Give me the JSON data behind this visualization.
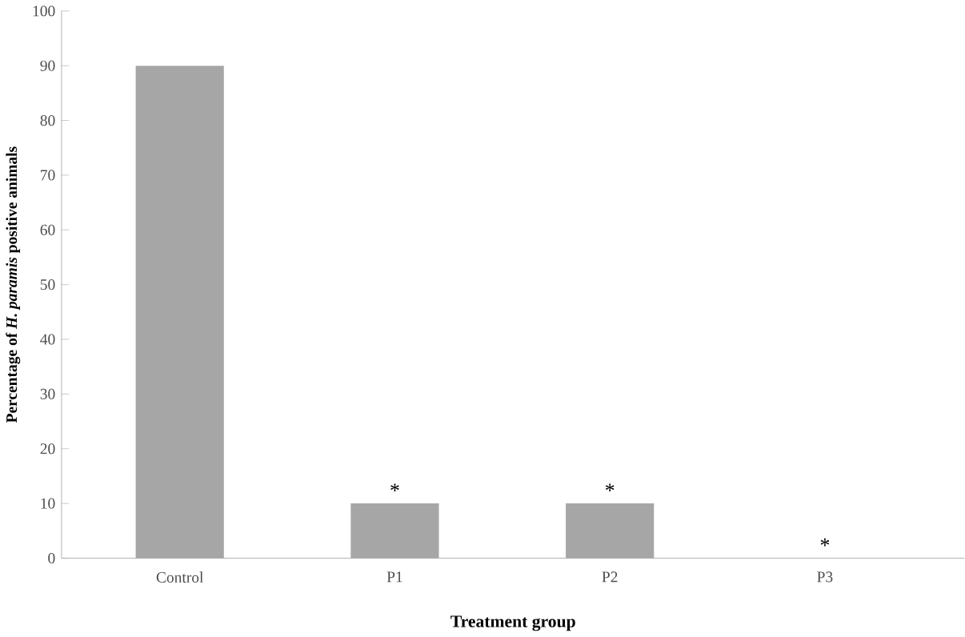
{
  "chart_data": {
    "type": "bar",
    "categories": [
      "Control",
      "P1",
      "P2",
      "P3"
    ],
    "values": [
      90,
      10,
      10,
      0
    ],
    "color": "#a6a6a6",
    "xlabel": "Treatment group",
    "ylabel": "Percentage of *H. paramis* positive animals",
    "ylim": [
      0,
      100
    ],
    "yticks": [
      0,
      10,
      20,
      30,
      40,
      50,
      60,
      70,
      80,
      90,
      100
    ],
    "annotations": [
      {
        "text": "*",
        "x": "P1",
        "y": 10
      },
      {
        "text": "*",
        "x": "P2",
        "y": 10
      },
      {
        "text": "*",
        "x": "P3",
        "y": 0
      }
    ],
    "grid": false
  }
}
